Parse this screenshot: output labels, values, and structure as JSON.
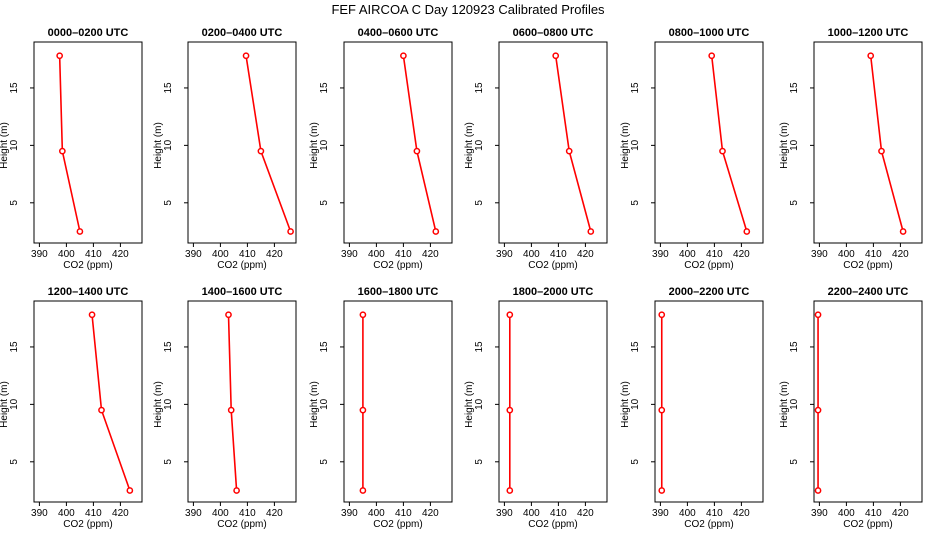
{
  "figure_title": "FEF AIRCOA C  Day 120923  Calibrated Profiles",
  "chart_data": {
    "type": "line",
    "xlabel": "CO2 (ppm)",
    "ylabel": "Height (m)",
    "xlim": [
      388,
      428
    ],
    "ylim": [
      1.5,
      19
    ],
    "xticks": [
      390,
      400,
      410,
      420
    ],
    "yticks": [
      5,
      10,
      15
    ],
    "heights": [
      2.5,
      9.5,
      17.8
    ],
    "series_color": "#ff0000",
    "panels": [
      {
        "title": "0000–0200 UTC",
        "co2": [
          405,
          398.5,
          397.5
        ]
      },
      {
        "title": "0200–0400 UTC",
        "co2": [
          426,
          415,
          409.5
        ]
      },
      {
        "title": "0400–0600 UTC",
        "co2": [
          422,
          415,
          410
        ]
      },
      {
        "title": "0600–0800 UTC",
        "co2": [
          422,
          414,
          409
        ]
      },
      {
        "title": "0800–1000 UTC",
        "co2": [
          422,
          413,
          409
        ]
      },
      {
        "title": "1000–1200 UTC",
        "co2": [
          421,
          413,
          409
        ]
      },
      {
        "title": "1200–1400 UTC",
        "co2": [
          423.5,
          413,
          409.5
        ]
      },
      {
        "title": "1400–1600 UTC",
        "co2": [
          406,
          404,
          403
        ]
      },
      {
        "title": "1600–1800 UTC",
        "co2": [
          395,
          395,
          395
        ]
      },
      {
        "title": "1800–2000 UTC",
        "co2": [
          392,
          392,
          392
        ]
      },
      {
        "title": "2000–2200 UTC",
        "co2": [
          390.5,
          390.5,
          390.5
        ]
      },
      {
        "title": "2200–2400 UTC",
        "co2": [
          389.5,
          389.5,
          389.5
        ]
      }
    ]
  }
}
